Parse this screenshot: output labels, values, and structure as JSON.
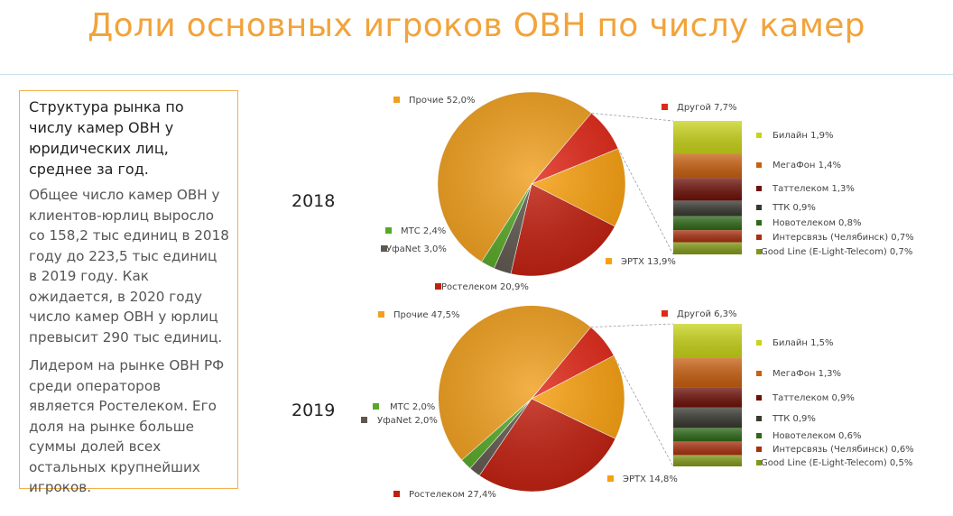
{
  "page": {
    "title": "Доли основных игроков ОВН по числу камер",
    "heading": "Структура рынка по числу камер ОВН у юридических лиц, среднее за год.",
    "paragraphs": [
      "Общее число камер ОВН у клиентов-юрлиц выросло со 158,2 тыс единиц в 2018 году до 223,5 тыс единиц в 2019 году. Как ожидается, в 2020 году число камер ОВН у юрлиц превысит 290 тыс единиц.",
      "Лидером на рынке ОВН РФ среди операторов является Ростелеком. Его доля на рынке больше суммы долей всех остальных крупнейших игроков."
    ]
  },
  "chart_data": [
    {
      "type": "pie",
      "title": "2018",
      "slices": [
        {
          "name": "Прочие",
          "value": 52.0,
          "label": "Прочие 52,0%",
          "color": "#f0a020"
        },
        {
          "name": "Другой",
          "value": 7.7,
          "label": "Другой 7,7%",
          "color": "#e02818"
        },
        {
          "name": "ЭРТХ",
          "value": 13.9,
          "label": "ЭРТХ 13,9%",
          "color": "#f8a010"
        },
        {
          "name": "Ростелеком",
          "value": 20.9,
          "label": "Ростелеком 20,9%",
          "color": "#c02010"
        },
        {
          "name": "УфаNet",
          "value": 3.0,
          "label": "УфаNet 3,0%",
          "color": "#605850"
        },
        {
          "name": "МТС",
          "value": 2.4,
          "label": "МТС 2,4%",
          "color": "#58a828"
        }
      ],
      "breakdown": [
        {
          "name": "Билайн",
          "value": 1.9,
          "label": "Билайн 1,9%",
          "color": "#c8d418"
        },
        {
          "name": "МегаФон",
          "value": 1.4,
          "label": "МегаФон 1,4%",
          "color": "#c86010"
        },
        {
          "name": "Таттелеком",
          "value": 1.3,
          "label": "Таттелеком 1,3%",
          "color": "#6e1008"
        },
        {
          "name": "ТТК",
          "value": 0.9,
          "label": "ТТК 0,9%",
          "color": "#383830"
        },
        {
          "name": "Новотелеком",
          "value": 0.8,
          "label": "Новотелеком 0,8%",
          "color": "#2e6818"
        },
        {
          "name": "Интерсвязь (Челябинск)",
          "value": 0.7,
          "label": "Интерсвязь (Челябинск) 0,7%",
          "color": "#a83010"
        },
        {
          "name": "Good Line (E-Light-Telecom)",
          "value": 0.7,
          "label": "Good Line (E-Light-Telecom) 0,7%",
          "color": "#809818"
        }
      ]
    },
    {
      "type": "pie",
      "title": "2019",
      "slices": [
        {
          "name": "Прочие",
          "value": 47.5,
          "label": "Прочие 47,5%",
          "color": "#f0a020"
        },
        {
          "name": "Другой",
          "value": 6.3,
          "label": "Другой 6,3%",
          "color": "#e02818"
        },
        {
          "name": "ЭРТХ",
          "value": 14.8,
          "label": "ЭРТХ 14,8%",
          "color": "#f8a010"
        },
        {
          "name": "Ростелеком",
          "value": 27.4,
          "label": "Ростелеком 27,4%",
          "color": "#c02010"
        },
        {
          "name": "УфаNet",
          "value": 2.0,
          "label": "УфаNet 2,0%",
          "color": "#605850"
        },
        {
          "name": "МТС",
          "value": 2.0,
          "label": "МТС 2,0%",
          "color": "#58a828"
        }
      ],
      "breakdown": [
        {
          "name": "Билайн",
          "value": 1.5,
          "label": "Билайн 1,5%",
          "color": "#c8d418"
        },
        {
          "name": "МегаФон",
          "value": 1.3,
          "label": "МегаФон 1,3%",
          "color": "#c86010"
        },
        {
          "name": "Таттелеком",
          "value": 0.9,
          "label": "Таттелеком 0,9%",
          "color": "#6e1008"
        },
        {
          "name": "ТТК",
          "value": 0.9,
          "label": "ТТК 0,9%",
          "color": "#383830"
        },
        {
          "name": "Новотелеком",
          "value": 0.6,
          "label": "Новотелеком 0,6%",
          "color": "#2e6818"
        },
        {
          "name": "Интерсвязь (Челябинск)",
          "value": 0.6,
          "label": "Интерсвязь (Челябинск) 0,6%",
          "color": "#a83010"
        },
        {
          "name": "Good Line (E-Light-Telecom)",
          "value": 0.5,
          "label": "Good Line (E-Light-Telecom) 0,5%",
          "color": "#809818"
        }
      ]
    }
  ]
}
